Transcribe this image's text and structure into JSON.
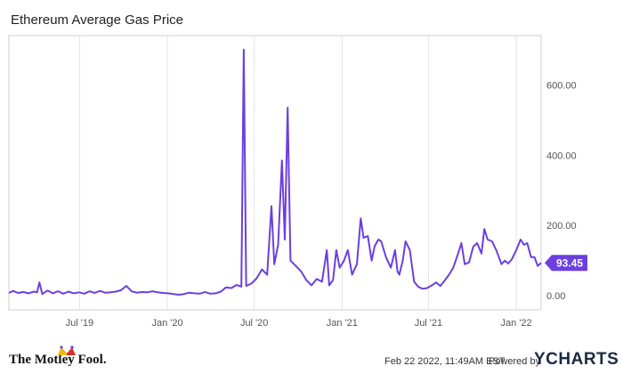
{
  "title": "Ethereum Average Gas Price",
  "chart_data": {
    "type": "line",
    "title": "Ethereum Average Gas Price",
    "xlabel": "",
    "ylabel": "",
    "ylim": [
      -40,
      740
    ],
    "yticks": [
      0,
      200,
      400,
      600
    ],
    "ytick_labels": [
      "0.00",
      "200.00",
      "400.00",
      "600.00"
    ],
    "x_range": [
      "2019-02-03",
      "2022-02-22"
    ],
    "xticks": [
      "2019-07-01",
      "2020-01-01",
      "2020-07-01",
      "2021-01-01",
      "2021-07-01",
      "2022-01-01"
    ],
    "xtick_labels": [
      "Jul '19",
      "Jan '20",
      "Jul '20",
      "Jan '21",
      "Jul '21",
      "Jan '22"
    ],
    "grid": "vertical",
    "color": "#6c3fe0",
    "last_value_label": "93.45",
    "series": [
      {
        "points": [
          [
            "2019-02-03",
            8
          ],
          [
            "2019-02-12",
            14
          ],
          [
            "2019-02-22",
            8
          ],
          [
            "2019-03-05",
            11
          ],
          [
            "2019-03-16",
            7
          ],
          [
            "2019-03-27",
            12
          ],
          [
            "2019-04-03",
            10
          ],
          [
            "2019-04-08",
            38
          ],
          [
            "2019-04-14",
            5
          ],
          [
            "2019-04-25",
            15
          ],
          [
            "2019-05-06",
            7
          ],
          [
            "2019-05-17",
            13
          ],
          [
            "2019-05-28",
            6
          ],
          [
            "2019-06-08",
            12
          ],
          [
            "2019-06-19",
            7
          ],
          [
            "2019-06-30",
            10
          ],
          [
            "2019-07-11",
            6
          ],
          [
            "2019-07-22",
            13
          ],
          [
            "2019-08-02",
            8
          ],
          [
            "2019-08-13",
            14
          ],
          [
            "2019-08-24",
            9
          ],
          [
            "2019-09-04",
            10
          ],
          [
            "2019-09-15",
            12
          ],
          [
            "2019-09-26",
            16
          ],
          [
            "2019-10-07",
            28
          ],
          [
            "2019-10-18",
            13
          ],
          [
            "2019-10-29",
            9
          ],
          [
            "2019-11-09",
            11
          ],
          [
            "2019-11-20",
            10
          ],
          [
            "2019-12-01",
            13
          ],
          [
            "2019-12-12",
            10
          ],
          [
            "2019-12-23",
            8
          ],
          [
            "2020-01-03",
            7
          ],
          [
            "2020-01-14",
            5
          ],
          [
            "2020-01-25",
            3
          ],
          [
            "2020-02-05",
            5
          ],
          [
            "2020-02-16",
            9
          ],
          [
            "2020-02-27",
            7
          ],
          [
            "2020-03-09",
            6
          ],
          [
            "2020-03-20",
            11
          ],
          [
            "2020-03-31",
            6
          ],
          [
            "2020-04-11",
            7
          ],
          [
            "2020-04-22",
            12
          ],
          [
            "2020-05-03",
            24
          ],
          [
            "2020-05-14",
            22
          ],
          [
            "2020-05-25",
            31
          ],
          [
            "2020-06-04",
            26
          ],
          [
            "2020-06-09",
            700
          ],
          [
            "2020-06-14",
            28
          ],
          [
            "2020-06-25",
            35
          ],
          [
            "2020-07-06",
            50
          ],
          [
            "2020-07-17",
            75
          ],
          [
            "2020-07-28",
            60
          ],
          [
            "2020-08-06",
            255
          ],
          [
            "2020-08-12",
            90
          ],
          [
            "2020-08-20",
            145
          ],
          [
            "2020-08-28",
            385
          ],
          [
            "2020-09-03",
            160
          ],
          [
            "2020-09-09",
            535
          ],
          [
            "2020-09-15",
            100
          ],
          [
            "2020-09-26",
            85
          ],
          [
            "2020-10-07",
            70
          ],
          [
            "2020-10-18",
            45
          ],
          [
            "2020-10-29",
            30
          ],
          [
            "2020-11-09",
            48
          ],
          [
            "2020-11-20",
            40
          ],
          [
            "2020-11-30",
            130
          ],
          [
            "2020-12-05",
            30
          ],
          [
            "2020-12-13",
            45
          ],
          [
            "2020-12-20",
            130
          ],
          [
            "2020-12-27",
            80
          ],
          [
            "2021-01-05",
            100
          ],
          [
            "2021-01-13",
            130
          ],
          [
            "2021-01-22",
            60
          ],
          [
            "2021-02-01",
            90
          ],
          [
            "2021-02-09",
            220
          ],
          [
            "2021-02-15",
            165
          ],
          [
            "2021-02-24",
            170
          ],
          [
            "2021-03-04",
            100
          ],
          [
            "2021-03-10",
            140
          ],
          [
            "2021-03-18",
            160
          ],
          [
            "2021-03-24",
            155
          ],
          [
            "2021-04-03",
            110
          ],
          [
            "2021-04-13",
            80
          ],
          [
            "2021-04-22",
            130
          ],
          [
            "2021-04-27",
            70
          ],
          [
            "2021-05-01",
            60
          ],
          [
            "2021-05-08",
            100
          ],
          [
            "2021-05-14",
            155
          ],
          [
            "2021-05-23",
            130
          ],
          [
            "2021-06-01",
            40
          ],
          [
            "2021-06-10",
            25
          ],
          [
            "2021-06-19",
            20
          ],
          [
            "2021-06-28",
            22
          ],
          [
            "2021-07-08",
            30
          ],
          [
            "2021-07-17",
            38
          ],
          [
            "2021-07-26",
            28
          ],
          [
            "2021-08-05",
            45
          ],
          [
            "2021-08-13",
            60
          ],
          [
            "2021-08-22",
            80
          ],
          [
            "2021-09-01",
            120
          ],
          [
            "2021-09-08",
            150
          ],
          [
            "2021-09-15",
            90
          ],
          [
            "2021-09-24",
            95
          ],
          [
            "2021-10-03",
            140
          ],
          [
            "2021-10-11",
            150
          ],
          [
            "2021-10-20",
            120
          ],
          [
            "2021-10-26",
            190
          ],
          [
            "2021-11-02",
            160
          ],
          [
            "2021-11-11",
            155
          ],
          [
            "2021-11-20",
            130
          ],
          [
            "2021-12-01",
            90
          ],
          [
            "2021-12-08",
            100
          ],
          [
            "2021-12-15",
            92
          ],
          [
            "2021-12-23",
            105
          ],
          [
            "2022-01-01",
            130
          ],
          [
            "2022-01-10",
            160
          ],
          [
            "2022-01-17",
            145
          ],
          [
            "2022-01-24",
            150
          ],
          [
            "2022-02-01",
            110
          ],
          [
            "2022-02-08",
            110
          ],
          [
            "2022-02-15",
            85
          ],
          [
            "2022-02-22",
            93.45
          ]
        ]
      }
    ]
  },
  "footer": {
    "brand": "The Motley Fool.",
    "brand_icon": "jester-hat-icon",
    "timestamp": "Feb 22 2022, 11:49AM EST.",
    "powered_by": "Powered by",
    "logo_text": "YCHARTS",
    "logo_color": "#1b2a44"
  }
}
